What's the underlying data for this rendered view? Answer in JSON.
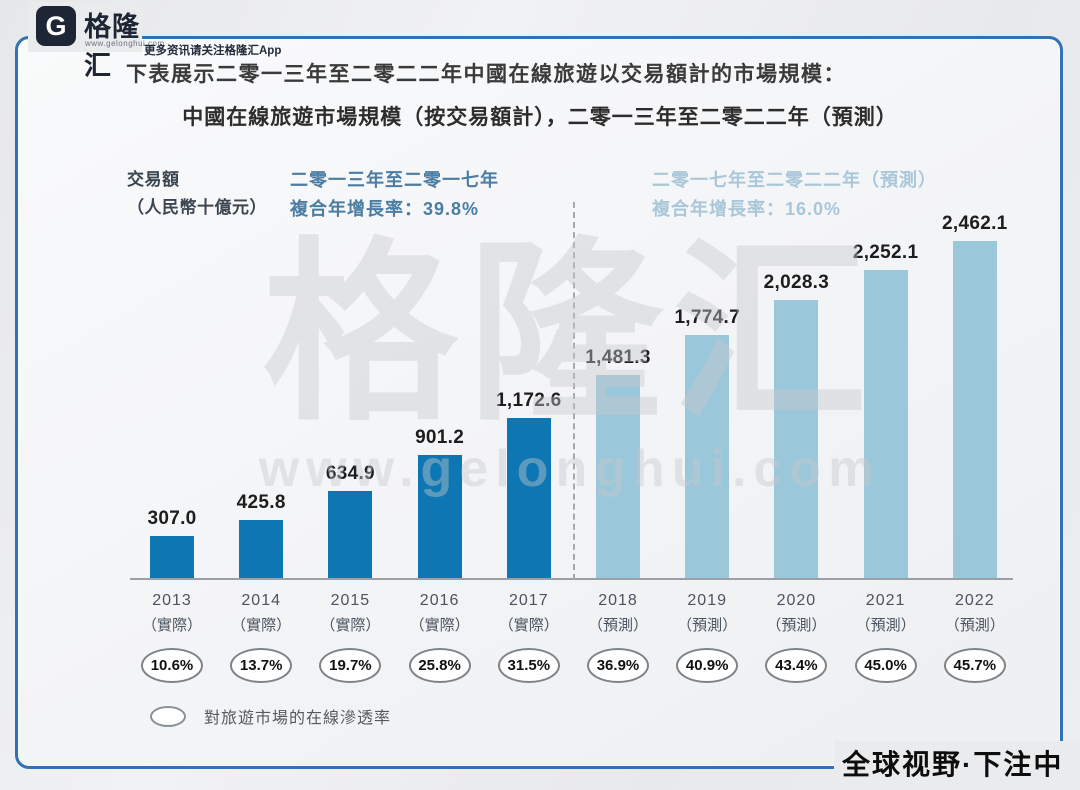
{
  "brand": {
    "logo_letter": "G",
    "logo_name": "格隆汇",
    "logo_url": "www.gelonghui.com",
    "tagline": "更多资讯请关注格隆汇App",
    "frame_color": "#2f72b5",
    "logo_color": "#1e2534"
  },
  "footer": {
    "slogan": "全球视野·下注中国"
  },
  "intro_text": "下表展示二零一三年至二零二二年中國在線旅遊以交易額計的市場規模：",
  "chart_data": {
    "type": "bar",
    "title": "中國在線旅遊市場規模（按交易額計），二零一三年至二零二二年（預測）",
    "ylabel": "交易額（人民幣十億元）",
    "ylabel_lines": [
      "交易額",
      "（人民幣十億元）"
    ],
    "annotations": [
      {
        "period": "二零一三年至二零一七年",
        "cagr": "複合年增長率：39.8%",
        "color": "#4b7da3"
      },
      {
        "period": "二零一七年至二零二二年（預測）",
        "cagr": "複合年增長率：16.0%",
        "color": "#a9c7d8"
      }
    ],
    "categories": [
      "2013",
      "2014",
      "2015",
      "2016",
      "2017",
      "2018",
      "2019",
      "2020",
      "2021",
      "2022"
    ],
    "category_notes": [
      "（實際）",
      "（實際）",
      "（實際）",
      "（實際）",
      "（實際）",
      "（預測）",
      "（預測）",
      "（預測）",
      "（預測）",
      "（預測）"
    ],
    "values": [
      307.0,
      425.8,
      634.9,
      901.2,
      1172.6,
      1481.3,
      1774.7,
      2028.3,
      2252.1,
      2462.1
    ],
    "value_labels": [
      "307.0",
      "425.8",
      "634.9",
      "901.2",
      "1,172.6",
      "1,481.3",
      "1,774.7",
      "2,028.3",
      "2,252.1",
      "2,462.1"
    ],
    "penetration": [
      "10.6%",
      "13.7%",
      "19.7%",
      "25.8%",
      "31.5%",
      "36.9%",
      "40.9%",
      "43.4%",
      "45.0%",
      "45.7%"
    ],
    "actual_count": 5,
    "actual_color": "#0d76b3",
    "forecast_color": "#9bc7da",
    "legend": "對旅遊市場的在線滲透率",
    "watermark": [
      "格隆汇",
      "www.gelonghui.com"
    ],
    "ylim": [
      0,
      2600
    ],
    "grid": false,
    "legend_position": "bottom-left"
  }
}
